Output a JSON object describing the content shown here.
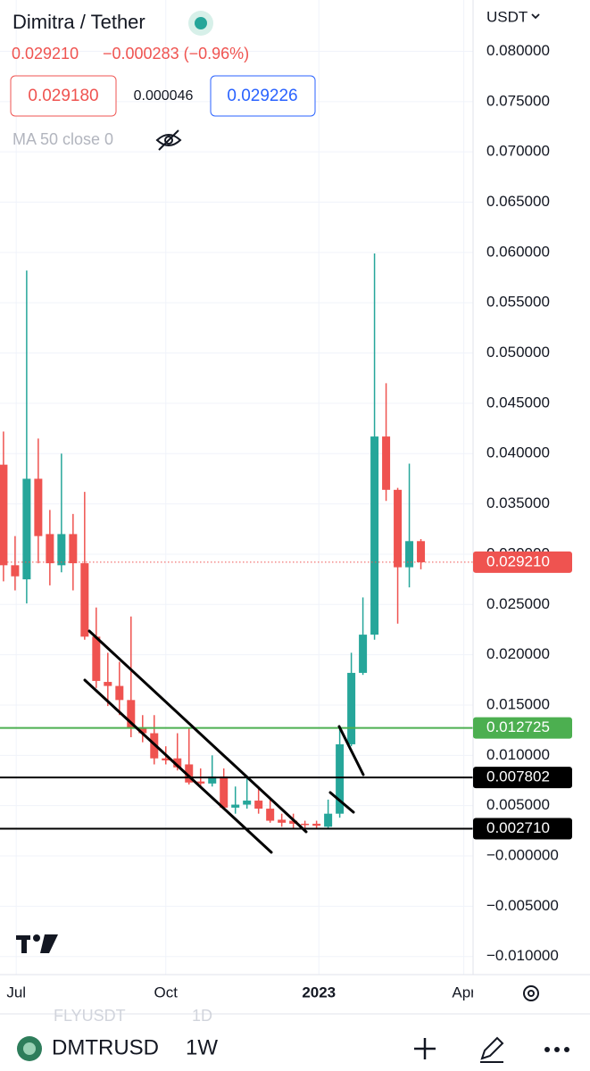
{
  "header": {
    "title": "Dimitra / Tether",
    "last": "0.029210",
    "change": "−0.000283 (−0.96%)",
    "bid": "0.029180",
    "spread": "0.000046",
    "ask": "0.029226",
    "indicator": "MA 50 close 0"
  },
  "chart_data": {
    "type": "candlestick",
    "unit": "USDT",
    "open": [
      0.0389,
      0.0289,
      0.0275,
      0.0375,
      0.032,
      0.0289,
      0.032,
      0.0291,
      0.0218,
      0.0173,
      0.0169,
      0.0155,
      0.0127,
      0.0122,
      0.0097,
      0.0097,
      0.0091,
      0.0074,
      0.0072,
      0.0079,
      0.0048,
      0.0051,
      0.0055,
      0.0047,
      0.0036,
      0.0035,
      0.0032,
      0.0032,
      0.0029,
      0.0042,
      0.0111,
      0.0182,
      0.022,
      0.0417,
      0.0364,
      0.0287,
      0.0313
    ],
    "high": [
      0.0422,
      0.0318,
      0.0582,
      0.0415,
      0.0344,
      0.04,
      0.034,
      0.0362,
      0.0247,
      0.0202,
      0.0193,
      0.0238,
      0.014,
      0.014,
      0.0109,
      0.0122,
      0.0127,
      0.0087,
      0.01,
      0.0087,
      0.0069,
      0.0078,
      0.0069,
      0.0056,
      0.0042,
      0.0042,
      0.0035,
      0.0035,
      0.0056,
      0.0127,
      0.0202,
      0.0257,
      0.0599,
      0.047,
      0.0366,
      0.039,
      0.0315
    ],
    "low": [
      0.0273,
      0.0264,
      0.0251,
      0.0291,
      0.0269,
      0.0282,
      0.0264,
      0.0215,
      0.0167,
      0.0149,
      0.014,
      0.0118,
      0.0113,
      0.0091,
      0.0091,
      0.0085,
      0.0071,
      0.0069,
      0.0069,
      0.0047,
      0.0042,
      0.0047,
      0.0042,
      0.0033,
      0.0029,
      0.0028,
      0.0028,
      0.0027,
      0.0028,
      0.0038,
      0.0109,
      0.018,
      0.0215,
      0.0353,
      0.0231,
      0.0267,
      0.0285
    ],
    "close": [
      0.0289,
      0.0278,
      0.0375,
      0.0318,
      0.0291,
      0.032,
      0.0291,
      0.0218,
      0.0174,
      0.0169,
      0.0155,
      0.0127,
      0.0122,
      0.0097,
      0.0095,
      0.0088,
      0.0073,
      0.0072,
      0.0079,
      0.0048,
      0.0051,
      0.0055,
      0.0047,
      0.0035,
      0.0033,
      0.0032,
      0.0031,
      0.003,
      0.0042,
      0.0111,
      0.0182,
      0.022,
      0.0417,
      0.0364,
      0.0287,
      0.0313,
      0.0292
    ],
    "up_color": "#26a69a",
    "down_color": "#ef5350",
    "xlim": [
      -0.3,
      40.5
    ],
    "xticks": [
      {
        "value": 1.1,
        "label": "Jul"
      },
      {
        "value": 14,
        "label": "Oct"
      },
      {
        "value": 27.2,
        "label": "2023"
      },
      {
        "value": 39.7,
        "label": "Apr"
      }
    ],
    "ylim": [
      -0.0118,
      0.0851
    ],
    "yticks": [
      {
        "value": 0.08,
        "label": "0.080000"
      },
      {
        "value": 0.075,
        "label": "0.075000"
      },
      {
        "value": 0.07,
        "label": "0.070000"
      },
      {
        "value": 0.065,
        "label": "0.065000"
      },
      {
        "value": 0.06,
        "label": "0.060000"
      },
      {
        "value": 0.055,
        "label": "0.055000"
      },
      {
        "value": 0.05,
        "label": "0.050000"
      },
      {
        "value": 0.045,
        "label": "0.045000"
      },
      {
        "value": 0.04,
        "label": "0.040000"
      },
      {
        "value": 0.035,
        "label": "0.035000"
      },
      {
        "value": 0.03,
        "label": "0.030000"
      },
      {
        "value": 0.025,
        "label": "0.025000"
      },
      {
        "value": 0.02,
        "label": "0.020000"
      },
      {
        "value": 0.015,
        "label": "0.015000"
      },
      {
        "value": 0.01,
        "label": "0.010000"
      },
      {
        "value": 0.005,
        "label": "0.005000"
      },
      {
        "value": 0,
        "label": "−0.000000"
      },
      {
        "value": -0.005,
        "label": "−0.005000"
      },
      {
        "value": -0.01,
        "label": "−0.010000"
      }
    ],
    "grid": true,
    "price_lines": [
      {
        "value": 0.012725,
        "label": "0.012725",
        "color": "#4caf50",
        "style": "solid"
      },
      {
        "value": 0.007802,
        "label": "0.007802",
        "color": "#000000",
        "style": "solid"
      },
      {
        "value": 0.00271,
        "label": "0.002710",
        "color": "#000000",
        "style": "solid"
      },
      {
        "value": 0.02921,
        "label": "0.029210",
        "color": "#ef5350",
        "style": "dotted"
      }
    ]
  },
  "footer": {
    "prev_symbol": "FLYUSDT",
    "prev_interval": "1D",
    "symbol": "DMTRUSD",
    "interval": "1W"
  }
}
